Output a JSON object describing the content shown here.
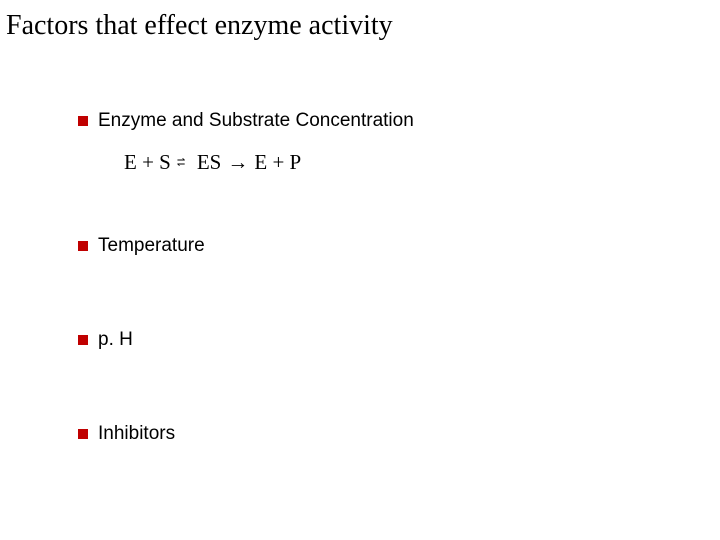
{
  "title": "Factors that effect enzyme activity",
  "bullets": {
    "b1": "Enzyme and Substrate Concentration",
    "b2": "Temperature",
    "b3": "p. H",
    "b4": "Inhibitors"
  },
  "equation": {
    "lhs": "E + S",
    "rev_top": "⇀",
    "rev_bot": "↽",
    "mid": "ES",
    "arrow": "→",
    "rhs": "E + P"
  },
  "colors": {
    "bullet": "#c00000",
    "text": "#000000",
    "background": "#ffffff"
  },
  "fonts": {
    "title_family": "Times New Roman",
    "title_size_pt": 21,
    "item_family": "Verdana",
    "item_size_pt": 14,
    "equation_family": "Times New Roman",
    "equation_size_pt": 16
  }
}
